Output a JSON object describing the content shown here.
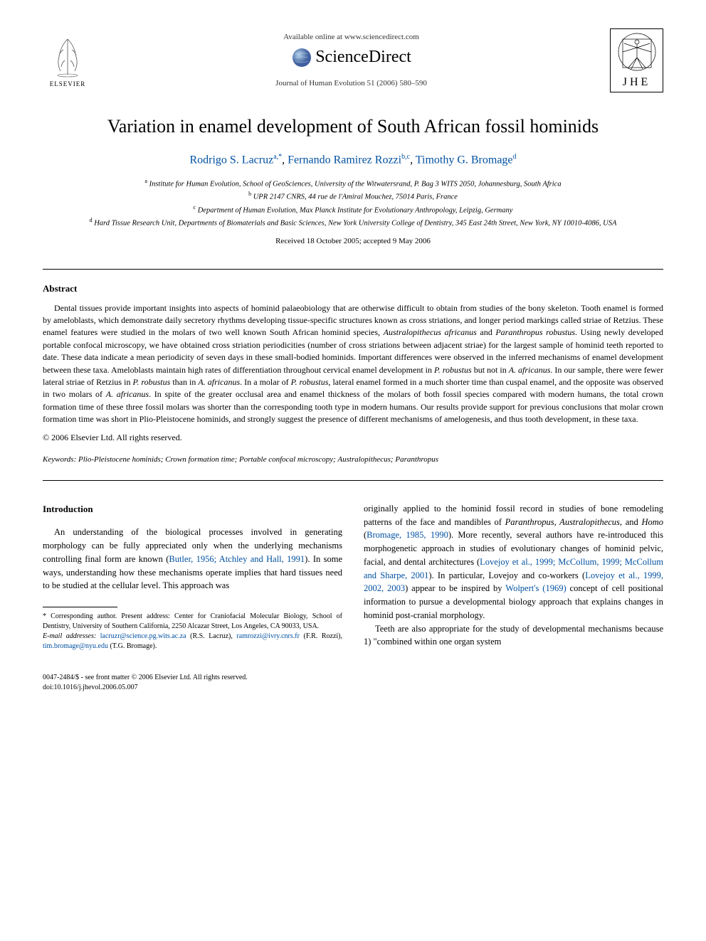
{
  "header": {
    "elsevier_label": "ELSEVIER",
    "available_text": "Available online at www.sciencedirect.com",
    "sd_name": "ScienceDirect",
    "journal_line": "Journal of Human Evolution 51 (2006) 580–590",
    "jhe_label": "JHE"
  },
  "title": "Variation in enamel development of South African fossil hominids",
  "authors": [
    {
      "name": "Rodrigo S. Lacruz",
      "sup": "a,*"
    },
    {
      "name": "Fernando Ramirez Rozzi",
      "sup": "b,c"
    },
    {
      "name": "Timothy G. Bromage",
      "sup": "d"
    }
  ],
  "affiliations": [
    {
      "letter": "a",
      "text": "Institute for Human Evolution, School of GeoSciences, University of the Witwatersrand, P. Bag 3 WITS 2050, Johannesburg, South Africa"
    },
    {
      "letter": "b",
      "text": "UPR 2147 CNRS, 44 rue de l'Amiral Mouchez, 75014 Paris, France"
    },
    {
      "letter": "c",
      "text": "Department of Human Evolution, Max Planck Institute for Evolutionary Anthropology, Leipzig, Germany"
    },
    {
      "letter": "d",
      "text": "Hard Tissue Research Unit, Departments of Biomaterials and Basic Sciences, New York University College of Dentistry, 345 East 24th Street, New York, NY 10010-4086, USA"
    }
  ],
  "dates": "Received 18 October 2005; accepted 9 May 2006",
  "abstract_heading": "Abstract",
  "abstract_html": "Dental tissues provide important insights into aspects of hominid palaeobiology that are otherwise difficult to obtain from studies of the bony skeleton. Tooth enamel is formed by ameloblasts, which demonstrate daily secretory rhythms developing tissue-specific structures known as cross striations, and longer period markings called striae of Retzius. These enamel features were studied in the molars of two well known South African hominid species, <em>Australopithecus africanus</em> and <em>Paranthropus robustus</em>. Using newly developed portable confocal microscopy, we have obtained cross striation periodicities (number of cross striations between adjacent striae) for the largest sample of hominid teeth reported to date. These data indicate a mean periodicity of seven days in these small-bodied hominids. Important differences were observed in the inferred mechanisms of enamel development between these taxa. Ameloblasts maintain high rates of differentiation throughout cervical enamel development in <em>P. robustus</em> but not in <em>A. africanus</em>. In our sample, there were fewer lateral striae of Retzius in <em>P. robustus</em> than in <em>A. africanus</em>. In a molar of <em>P. robustus</em>, lateral enamel formed in a much shorter time than cuspal enamel, and the opposite was observed in two molars of <em>A. africanus</em>. In spite of the greater occlusal area and enamel thickness of the molars of both fossil species compared with modern humans, the total crown formation time of these three fossil molars was shorter than the corresponding tooth type in modern humans. Our results provide support for previous conclusions that molar crown formation time was short in Plio-Pleistocene hominids, and strongly suggest the presence of different mechanisms of amelogenesis, and thus tooth development, in these taxa.",
  "copyright": "© 2006 Elsevier Ltd. All rights reserved.",
  "keywords_label": "Keywords:",
  "keywords_text": "Plio-Pleistocene hominids; Crown formation time; Portable confocal microscopy; Australopithecus; Paranthropus",
  "intro_heading": "Introduction",
  "col_left": {
    "p1_pre": "An understanding of the biological processes involved in generating morphology can be fully appreciated only when the underlying mechanisms controlling final form are known (",
    "c1": "Butler, 1956; Atchley and Hall, 1991",
    "p1_post": "). In some ways, understanding how these mechanisms operate implies that hard tissues need to be studied at the cellular level. This approach was"
  },
  "col_right": {
    "p1_pre": "originally applied to the hominid fossil record in studies of bone remodeling patterns of the face and mandibles of ",
    "taxa": "Paranthropus, Australopithecus,",
    "and": " and ",
    "homo": "Homo",
    "p1_mid1": " (",
    "c1": "Bromage, 1985, 1990",
    "p1_mid2": "). More recently, several authors have re-introduced this morphogenetic approach in studies of evolutionary changes of hominid pelvic, facial, and dental architectures (",
    "c2": "Lovejoy et al., 1999; McCollum, 1999; McCollum and Sharpe, 2001",
    "p1_mid3": "). In particular, Lovejoy and co-workers (",
    "c3": "Lovejoy et al., 1999, 2002, 2003",
    "p1_mid4": ") appear to be inspired by ",
    "c4": "Wolpert's (1969)",
    "p1_post": " concept of cell positional information to pursue a developmental biology approach that explains changes in hominid post-cranial morphology.",
    "p2": "Teeth are also appropriate for the study of developmental mechanisms because 1) \"combined within one organ system"
  },
  "footnote": {
    "corr_label": "* Corresponding author. Present address: Center for Craniofacial Molecular Biology, School of Dentistry, University of Southern California, 2250 Alcazar Street, Los Angeles, CA 90033, USA.",
    "email_label": "E-mail addresses:",
    "e1": "lacruzr@science.pg.wits.ac.za",
    "e1_who": " (R.S. Lacruz), ",
    "e2": "ramrozzi@ivry.cnrs.fr",
    "e2_who": " (F.R. Rozzi), ",
    "e3": "tim.bromage@nyu.edu",
    "e3_who": " (T.G. Bromage)."
  },
  "footer": {
    "issn": "0047-2484/$ - see front matter © 2006 Elsevier Ltd. All rights reserved.",
    "doi": "doi:10.1016/j.jhevol.2006.05.007"
  },
  "colors": {
    "link": "#0050a0",
    "text": "#000000",
    "bg": "#ffffff"
  }
}
